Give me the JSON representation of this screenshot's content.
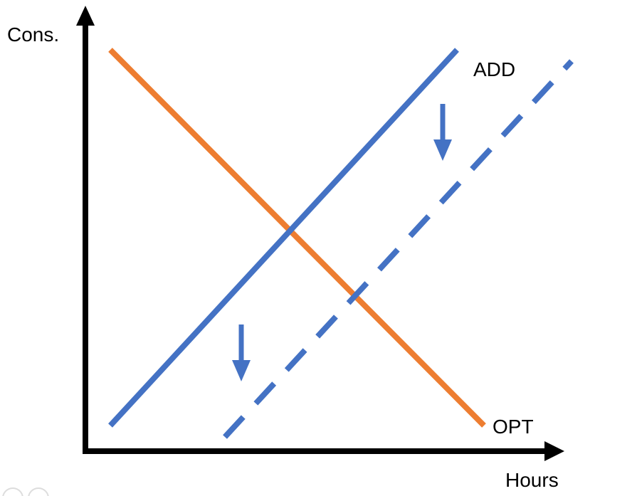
{
  "axes": {
    "y_label": "Cons.",
    "x_label": "Hours",
    "color": "#000000"
  },
  "lines": {
    "add": {
      "label": "ADD",
      "color": "#4472C4",
      "style": "solid"
    },
    "add_shifted": {
      "label": "",
      "color": "#4472C4",
      "style": "dashed"
    },
    "opt": {
      "label": "OPT",
      "color": "#ED7D31",
      "style": "solid"
    }
  },
  "arrows": {
    "shift_direction": "down",
    "color": "#4472C4",
    "count": 2
  }
}
